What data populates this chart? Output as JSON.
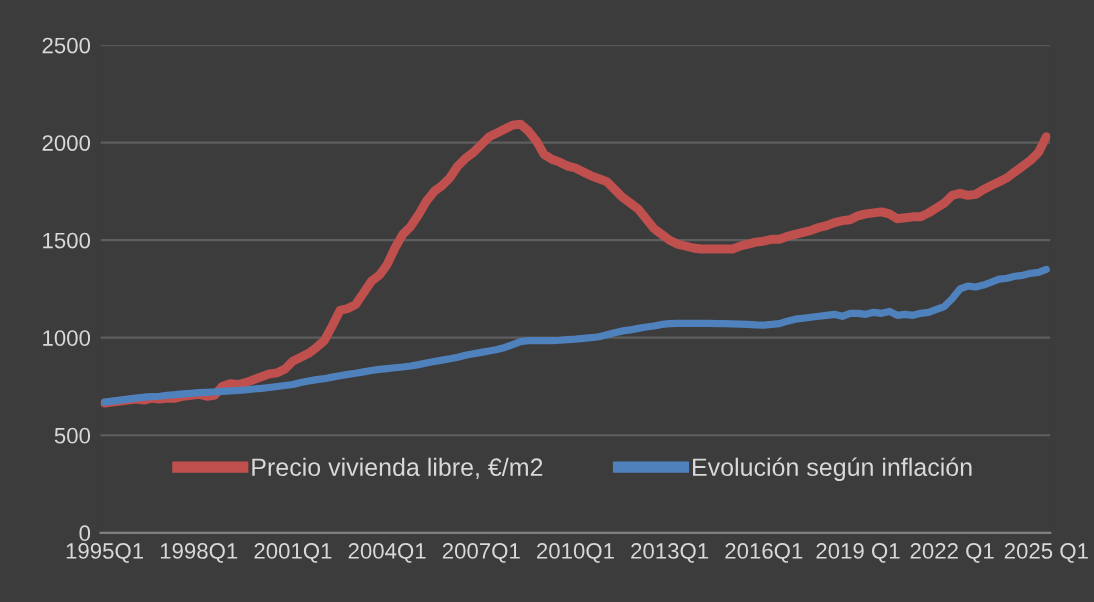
{
  "chart_data": {
    "type": "line",
    "categories": [
      "1995Q1",
      null,
      null,
      null,
      null,
      null,
      null,
      null,
      null,
      null,
      null,
      null,
      "1998Q1",
      null,
      null,
      null,
      null,
      null,
      null,
      null,
      null,
      null,
      null,
      null,
      "2001Q1",
      null,
      null,
      null,
      null,
      null,
      null,
      null,
      null,
      null,
      null,
      null,
      "2004Q1",
      null,
      null,
      null,
      null,
      null,
      null,
      null,
      null,
      null,
      null,
      null,
      "2007Q1",
      null,
      null,
      null,
      null,
      null,
      null,
      null,
      null,
      null,
      null,
      null,
      "2010Q1",
      null,
      null,
      null,
      null,
      null,
      null,
      null,
      null,
      null,
      null,
      null,
      "2013Q1",
      null,
      null,
      null,
      null,
      null,
      null,
      null,
      null,
      null,
      null,
      null,
      "2016Q1",
      null,
      null,
      null,
      null,
      null,
      null,
      null,
      null,
      null,
      null,
      null,
      "2019 Q1",
      null,
      null,
      null,
      null,
      null,
      null,
      null,
      null,
      null,
      null,
      null,
      "2022 Q1",
      null,
      null,
      null,
      null,
      null,
      null,
      null,
      null,
      null,
      null,
      null,
      "2025 Q1"
    ],
    "series": [
      {
        "name": "Precio vivienda libre, €/m2",
        "color": "#c0504d",
        "values": [
          665,
          670,
          675,
          680,
          685,
          680,
          690,
          685,
          690,
          690,
          700,
          705,
          710,
          700,
          705,
          750,
          765,
          760,
          770,
          785,
          800,
          815,
          820,
          840,
          880,
          900,
          920,
          950,
          985,
          1060,
          1140,
          1150,
          1170,
          1230,
          1290,
          1320,
          1375,
          1460,
          1530,
          1570,
          1630,
          1700,
          1750,
          1780,
          1820,
          1880,
          1920,
          1950,
          1990,
          2030,
          2050,
          2070,
          2090,
          2095,
          2060,
          2010,
          1940,
          1915,
          1900,
          1880,
          1870,
          1850,
          1830,
          1815,
          1800,
          1760,
          1720,
          1690,
          1660,
          1610,
          1560,
          1530,
          1500,
          1480,
          1470,
          1460,
          1455,
          1455,
          1455,
          1455,
          1455,
          1470,
          1480,
          1490,
          1495,
          1505,
          1505,
          1520,
          1530,
          1540,
          1550,
          1565,
          1575,
          1590,
          1600,
          1605,
          1625,
          1635,
          1640,
          1645,
          1635,
          1610,
          1615,
          1620,
          1620,
          1640,
          1665,
          1690,
          1730,
          1740,
          1730,
          1735,
          1760,
          1780,
          1800,
          1820,
          1850,
          1880,
          1910,
          1950,
          2030
        ]
      },
      {
        "name": "Evolución según inflación",
        "color": "#4f81bd",
        "values": [
          670,
          675,
          680,
          685,
          690,
          695,
          698,
          700,
          705,
          708,
          712,
          715,
          718,
          720,
          722,
          725,
          728,
          730,
          733,
          737,
          740,
          745,
          750,
          755,
          760,
          770,
          778,
          785,
          790,
          798,
          805,
          812,
          818,
          825,
          832,
          838,
          842,
          846,
          850,
          855,
          862,
          870,
          878,
          885,
          892,
          900,
          910,
          918,
          925,
          932,
          940,
          950,
          965,
          980,
          985,
          985,
          985,
          985,
          987,
          990,
          993,
          997,
          1000,
          1005,
          1015,
          1025,
          1035,
          1040,
          1048,
          1055,
          1060,
          1068,
          1072,
          1073,
          1073,
          1073,
          1073,
          1073,
          1072,
          1072,
          1071,
          1070,
          1068,
          1066,
          1065,
          1068,
          1072,
          1085,
          1095,
          1100,
          1105,
          1110,
          1115,
          1120,
          1110,
          1125,
          1125,
          1120,
          1130,
          1125,
          1135,
          1115,
          1120,
          1115,
          1125,
          1130,
          1145,
          1160,
          1200,
          1250,
          1265,
          1260,
          1270,
          1285,
          1300,
          1305,
          1315,
          1320,
          1330,
          1335,
          1350
        ]
      }
    ],
    "ylim": [
      0,
      2500
    ],
    "yticks": [
      0,
      500,
      1000,
      1500,
      2000,
      2500
    ],
    "grid": "y",
    "legend": "bottom",
    "marker": "none",
    "line_style": "solid"
  }
}
